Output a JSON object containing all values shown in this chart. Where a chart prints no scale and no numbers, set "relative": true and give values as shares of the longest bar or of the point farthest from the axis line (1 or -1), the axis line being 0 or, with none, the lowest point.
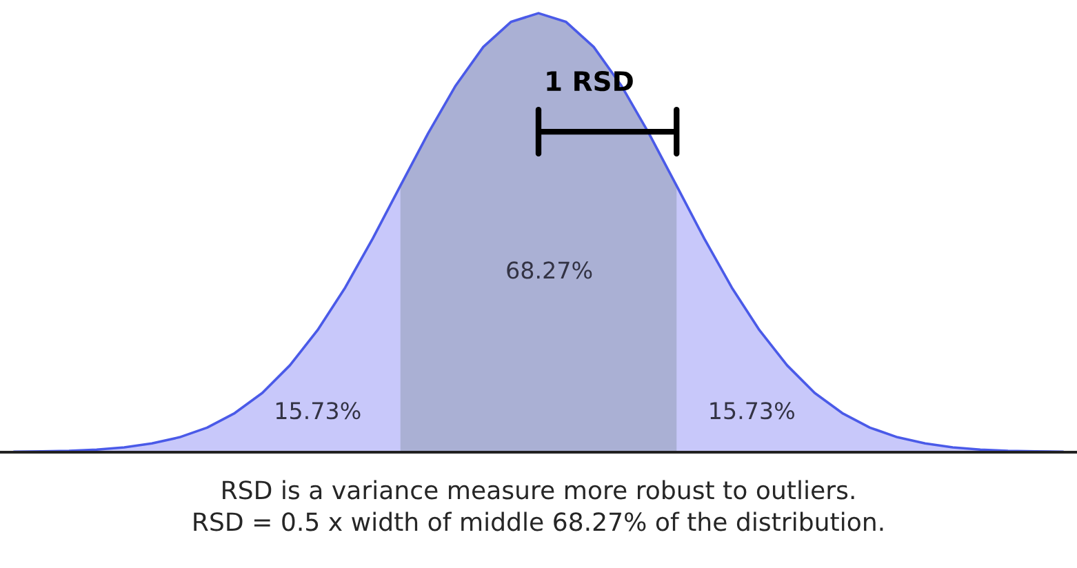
{
  "chart_data": {
    "type": "area",
    "relative": true,
    "categories": [
      null,
      null,
      null,
      null,
      null,
      null,
      null,
      null,
      null,
      null,
      null,
      null,
      null,
      null,
      null,
      null,
      null,
      null,
      null,
      null,
      null,
      null,
      null,
      null,
      null,
      null,
      null,
      null,
      null,
      null,
      null,
      null,
      null,
      null,
      null,
      null,
      null,
      null,
      null
    ],
    "series": [
      {
        "color": "#c8c8fa",
        "values": [
          0.001,
          0.002,
          0.003,
          0.006,
          0.011,
          0.02,
          0.034,
          0.056,
          0.089,
          0.135,
          0.198,
          0.278,
          0.375,
          0.487,
          0.607,
          0.726,
          0.835,
          0.923,
          0.98,
          1.0,
          0.98,
          0.923,
          0.835,
          0.726,
          0.607,
          0.487,
          0.375,
          0.278,
          0.198,
          0.135,
          0.089,
          0.056,
          0.034,
          0.02,
          0.011,
          0.006,
          0.003,
          0.002,
          0.001
        ]
      },
      {
        "color": "#aab0d4",
        "values": [
          null,
          null,
          null,
          null,
          null,
          null,
          null,
          null,
          null,
          null,
          null,
          null,
          null,
          null,
          0.607,
          0.726,
          0.835,
          0.923,
          0.98,
          1.0,
          0.98,
          0.923,
          0.835,
          0.726,
          0.607,
          null,
          null,
          null,
          null,
          null,
          null,
          null,
          null,
          null,
          null,
          null,
          null,
          null,
          null
        ]
      }
    ],
    "annotations": [
      "15.73%",
      "68.27%",
      "15.73%",
      "1 RSD",
      "RSD is a variance measure more robust to outliers.",
      "RSD = 0.5 x width of middle 68.27% of the distribution."
    ]
  }
}
